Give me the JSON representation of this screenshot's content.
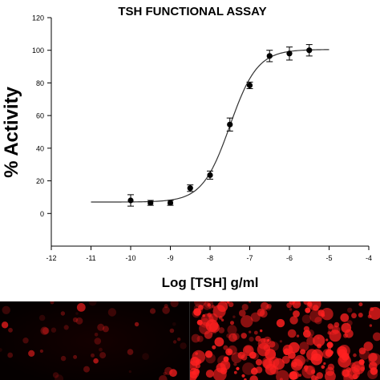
{
  "chart_data": {
    "type": "scatter",
    "title": "TSH FUNCTIONAL ASSAY",
    "xlabel": "Log [TSH] g/ml",
    "ylabel": "% Activity",
    "xlim": [
      -12,
      -4
    ],
    "ylim": [
      -20,
      120
    ],
    "xticks": [
      -12,
      -11,
      -10,
      -9,
      -8,
      -7,
      -6,
      -5,
      -4
    ],
    "yticks": [
      0,
      20,
      40,
      60,
      80,
      100,
      120
    ],
    "grid": false,
    "legend": "none",
    "points": [
      {
        "x": -10.0,
        "y": 8,
        "err": 3.5
      },
      {
        "x": -9.5,
        "y": 6.5,
        "err": 1.5
      },
      {
        "x": -9.0,
        "y": 6.5,
        "err": 1.5
      },
      {
        "x": -8.5,
        "y": 15.5,
        "err": 2
      },
      {
        "x": -8.0,
        "y": 23.5,
        "err": 2.5
      },
      {
        "x": -7.5,
        "y": 54.5,
        "err": 4
      },
      {
        "x": -7.0,
        "y": 78.5,
        "err": 2
      },
      {
        "x": -6.5,
        "y": 96.5,
        "err": 3.5
      },
      {
        "x": -6.0,
        "y": 98,
        "err": 4
      },
      {
        "x": -5.5,
        "y": 100,
        "err": 3.5
      }
    ],
    "fit": {
      "model": "sigmoid",
      "bottom": 7,
      "top": 100.5,
      "logEC50": -7.5,
      "hill": 1.25,
      "xrange": [
        -11,
        -5
      ]
    }
  },
  "colors": {
    "marker": "#000000",
    "line": "#333333",
    "micro_bg": "#050000",
    "fluorescence": "#ff2020"
  }
}
